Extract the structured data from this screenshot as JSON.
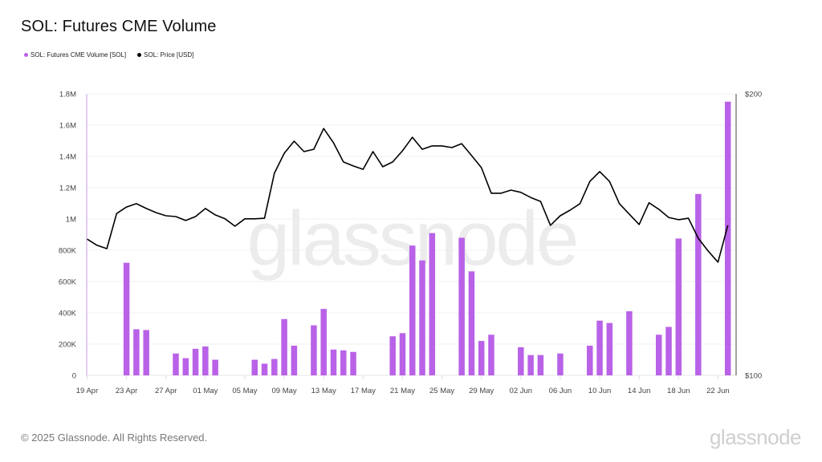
{
  "header": {
    "title": "SOL: Futures CME Volume"
  },
  "legend": [
    {
      "label": "SOL: Futures CME Volume [SOL]",
      "color": "#b962e8"
    },
    {
      "label": "SOL: Price [USD]",
      "color": "#000000"
    }
  ],
  "watermark": "glassnode",
  "footer": {
    "copyright": "© 2025 Glassnode. All Rights Reserved.",
    "brand": "glassnode"
  },
  "chart_data": {
    "type": "bar",
    "title": "SOL: Futures CME Volume",
    "xlabel": "",
    "ylabel": "",
    "ylim": [
      0,
      1800000
    ],
    "y2lim": [
      100,
      200
    ],
    "grid": true,
    "legend_position": "top-left",
    "y_ticks": [
      "0",
      "200K",
      "400K",
      "600K",
      "800K",
      "1M",
      "1.2M",
      "1.4M",
      "1.6M",
      "1.8M"
    ],
    "y2_ticks": [
      "$100",
      "$200"
    ],
    "x_ticks": [
      "19 Apr",
      "23 Apr",
      "27 Apr",
      "01 May",
      "05 May",
      "09 May",
      "13 May",
      "17 May",
      "21 May",
      "25 May",
      "29 May",
      "02 Jun",
      "06 Jun",
      "10 Jun",
      "14 Jun",
      "18 Jun",
      "22 Jun"
    ],
    "categories": [
      "19 Apr",
      "20 Apr",
      "21 Apr",
      "22 Apr",
      "23 Apr",
      "24 Apr",
      "25 Apr",
      "26 Apr",
      "27 Apr",
      "28 Apr",
      "29 Apr",
      "30 Apr",
      "01 May",
      "02 May",
      "03 May",
      "04 May",
      "05 May",
      "06 May",
      "07 May",
      "08 May",
      "09 May",
      "10 May",
      "11 May",
      "12 May",
      "13 May",
      "14 May",
      "15 May",
      "16 May",
      "17 May",
      "18 May",
      "19 May",
      "20 May",
      "21 May",
      "22 May",
      "23 May",
      "24 May",
      "25 May",
      "26 May",
      "27 May",
      "28 May",
      "29 May",
      "30 May",
      "31 May",
      "01 Jun",
      "02 Jun",
      "03 Jun",
      "04 Jun",
      "05 Jun",
      "06 Jun",
      "07 Jun",
      "08 Jun",
      "09 Jun",
      "10 Jun",
      "11 Jun",
      "12 Jun",
      "13 Jun",
      "14 Jun",
      "15 Jun",
      "16 Jun",
      "17 Jun",
      "18 Jun",
      "19 Jun",
      "20 Jun",
      "21 Jun",
      "22 Jun",
      "23 Jun"
    ],
    "series": [
      {
        "name": "SOL: Futures CME Volume [SOL]",
        "type": "bar",
        "axis": "left",
        "color": "#b962e8",
        "values": [
          0,
          0,
          0,
          0,
          720000,
          295000,
          290000,
          0,
          0,
          140000,
          110000,
          170000,
          185000,
          100000,
          0,
          0,
          0,
          100000,
          75000,
          105000,
          360000,
          190000,
          0,
          320000,
          425000,
          165000,
          160000,
          150000,
          0,
          0,
          0,
          250000,
          270000,
          830000,
          735000,
          910000,
          0,
          0,
          880000,
          665000,
          220000,
          260000,
          0,
          0,
          180000,
          130000,
          130000,
          0,
          140000,
          0,
          0,
          190000,
          350000,
          335000,
          0,
          410000,
          0,
          0,
          260000,
          310000,
          875000,
          0,
          1160000,
          0,
          0,
          1750000
        ]
      },
      {
        "name": "SOL: Price [USD]",
        "type": "line",
        "axis": "right",
        "color": "#000000",
        "values": [
          148.4,
          146.2,
          145.0,
          157.5,
          159.8,
          161.0,
          159.3,
          157.8,
          156.7,
          156.4,
          155.0,
          156.4,
          159.3,
          157.0,
          155.6,
          153.0,
          155.6,
          155.6,
          155.8,
          171.8,
          178.9,
          183.2,
          179.5,
          180.3,
          187.7,
          182.6,
          175.8,
          174.4,
          173.2,
          179.5,
          174.1,
          175.8,
          179.8,
          184.6,
          180.3,
          181.5,
          181.5,
          180.9,
          182.3,
          178.1,
          173.8,
          164.7,
          164.7,
          165.8,
          165.0,
          163.2,
          161.8,
          153.3,
          156.7,
          158.7,
          161.0,
          168.9,
          172.4,
          168.9,
          161.0,
          157.3,
          153.6,
          161.3,
          159.0,
          156.1,
          155.3,
          155.8,
          148.7,
          144.2,
          140.2,
          153.3
        ]
      }
    ]
  }
}
